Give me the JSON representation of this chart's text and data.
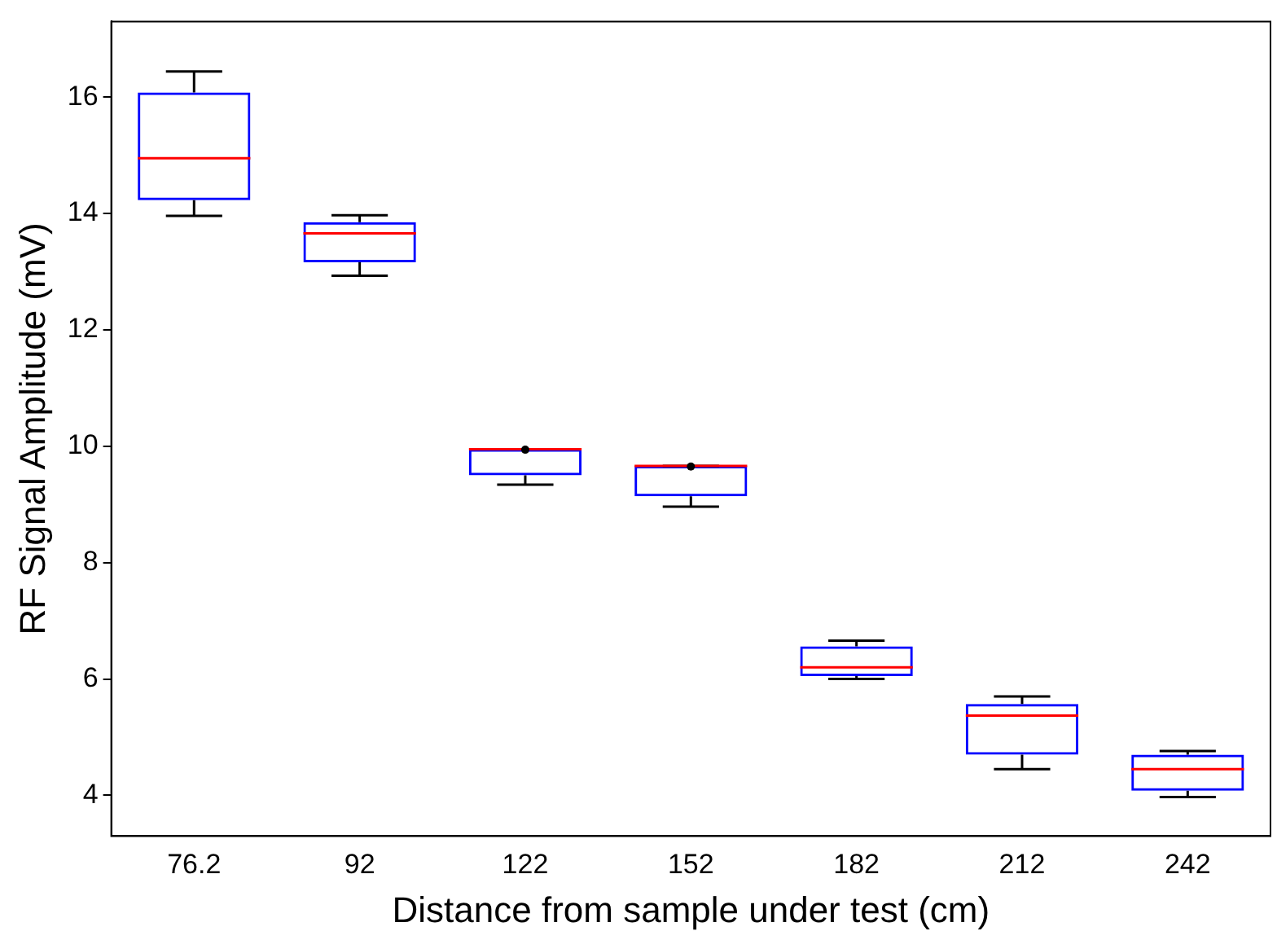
{
  "chart_data": {
    "type": "box",
    "xlabel": "Distance from sample under test (cm)",
    "ylabel": "RF Signal Amplitude (mV)",
    "categories": [
      "76.2",
      "92",
      "122",
      "152",
      "182",
      "212",
      "242"
    ],
    "ylim": [
      3.3,
      17.3
    ],
    "yticks": [
      4,
      6,
      8,
      10,
      12,
      14,
      16
    ],
    "grid": false,
    "legend": false,
    "series": [
      {
        "color": "#0000ff",
        "boxes": [
          {
            "low": 13.96,
            "q1": 14.23,
            "median": 14.95,
            "q3": 16.08,
            "high": 16.44
          },
          {
            "low": 12.93,
            "q1": 13.16,
            "median": 13.66,
            "q3": 13.85,
            "high": 13.97
          },
          {
            "low": 9.34,
            "q1": 9.5,
            "median": 9.95,
            "q3": 9.95,
            "high": 9.95,
            "mean": 9.94
          },
          {
            "low": 8.96,
            "q1": 9.14,
            "median": 9.66,
            "q3": 9.66,
            "high": 9.66,
            "mean": 9.65
          },
          {
            "low": 6.0,
            "q1": 6.05,
            "median": 6.2,
            "q3": 6.56,
            "high": 6.66
          },
          {
            "low": 4.45,
            "q1": 4.7,
            "median": 5.37,
            "q3": 5.57,
            "high": 5.7
          },
          {
            "low": 3.97,
            "q1": 4.08,
            "median": 4.45,
            "q3": 4.7,
            "high": 4.76
          }
        ]
      }
    ]
  }
}
